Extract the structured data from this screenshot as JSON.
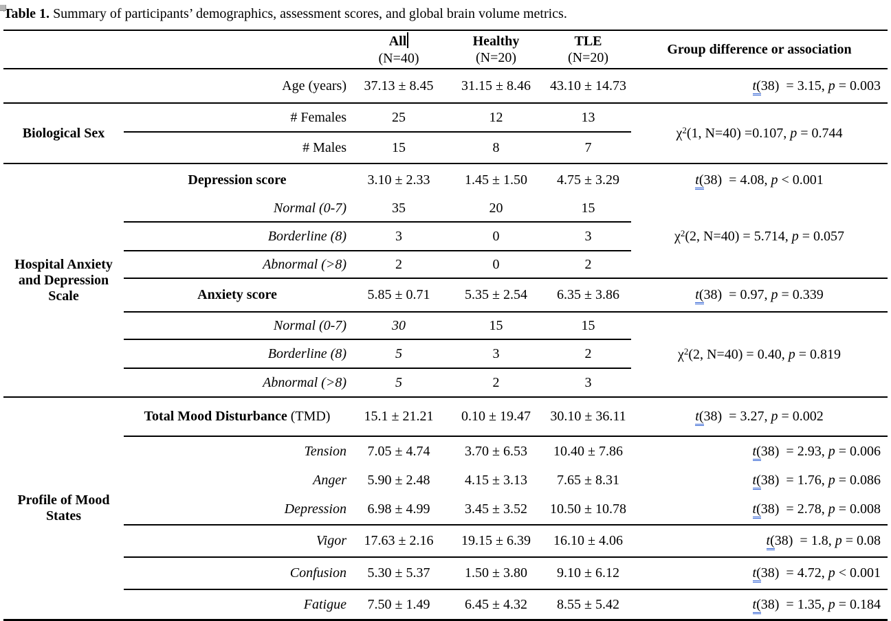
{
  "title": {
    "label": "Table 1.",
    "text": " Summary of participants’ demographics, assessment scores, and global brain volume metrics."
  },
  "header": {
    "columns": [
      {
        "line1": "All",
        "line2": "(N=40)"
      },
      {
        "line1": "Healthy",
        "line2": "(N=20)"
      },
      {
        "line1": "TLE",
        "line2": "(N=20)"
      }
    ],
    "group_diff": "Group difference or association"
  },
  "groups": [
    {
      "label": "Biological Sex"
    },
    {
      "label": "Hospital Anxiety and Depression Scale"
    },
    {
      "label": "Profile of Mood States"
    }
  ],
  "rows": [
    {
      "label": "Age (years)",
      "values": [
        "37.13 ± 8.45",
        "31.15 ± 8.46",
        "43.10 ± 14.73"
      ]
    },
    {
      "label": "# Females",
      "values": [
        "25",
        "12",
        "13"
      ]
    },
    {
      "label": "# Males",
      "values": [
        "15",
        "8",
        "7"
      ]
    },
    {
      "label": "Depression score",
      "values": [
        "3.10 ± 2.33",
        "1.45 ± 1.50",
        "4.75 ± 3.29"
      ]
    },
    {
      "label": "Normal (0-7)",
      "values": [
        "35",
        "20",
        "15"
      ]
    },
    {
      "label": "Borderline (8)",
      "values": [
        "3",
        "0",
        "3"
      ]
    },
    {
      "label": "Abnormal (>8)",
      "values": [
        "2",
        "0",
        "2"
      ]
    },
    {
      "label": "Anxiety score",
      "values": [
        "5.85 ± 0.71",
        "5.35 ± 2.54",
        "6.35 ± 3.86"
      ]
    },
    {
      "label": "Normal (0-7)",
      "values": [
        "30",
        "15",
        "15"
      ]
    },
    {
      "label": "Borderline (8)",
      "values": [
        "5",
        "3",
        "2"
      ]
    },
    {
      "label": "Abnormal (>8)",
      "values": [
        "5",
        "2",
        "3"
      ]
    },
    {
      "label": "Total Mood Disturbance",
      "label_suffix": " (TMD)",
      "values": [
        "15.1 ± 21.21",
        "0.10 ± 19.47",
        "30.10 ± 36.11"
      ]
    },
    {
      "label": "Tension",
      "values": [
        "7.05 ± 4.74",
        "3.70 ± 6.53",
        "10.40 ± 7.86"
      ]
    },
    {
      "label": "Anger",
      "values": [
        "5.90 ± 2.48",
        "4.15 ± 3.13",
        "7.65 ± 8.31"
      ]
    },
    {
      "label": "Depression",
      "values": [
        "6.98 ± 4.99",
        "3.45 ± 3.52",
        "10.50 ± 10.78"
      ]
    },
    {
      "label": "Vigor",
      "values": [
        "17.63 ± 2.16",
        "19.15 ± 6.39",
        "16.10 ± 4.06"
      ]
    },
    {
      "label": "Confusion",
      "values": [
        "5.30 ± 5.37",
        "1.50 ± 3.80",
        "9.10 ± 6.12"
      ]
    },
    {
      "label": "Fatigue",
      "values": [
        "7.50 ± 1.49",
        "6.45 ± 4.32",
        "8.55 ± 5.42"
      ]
    }
  ],
  "stats": [
    {
      "text": "t(38)  = 3.15, p = 0.003",
      "align": "right"
    },
    {
      "text": "χ2(1, N=40) =0.107, p = 0.744",
      "align": "center"
    },
    {
      "text": "t(38)  = 4.08, p < 0.001",
      "align": "center"
    },
    {
      "text": "χ2(2, N=40) = 5.714, p = 0.057",
      "align": "center"
    },
    {
      "text": "t(38)  = 0.97, p = 0.339",
      "align": "center"
    },
    {
      "text": "χ2(2, N=40) = 0.40, p = 0.819",
      "align": "center"
    },
    {
      "text": "t(38)  = 3.27, p = 0.002",
      "align": "center"
    },
    {
      "text": "t(38)  = 2.93, p = 0.006",
      "align": "right"
    },
    {
      "text": "t(38)  = 1.76, p = 0.086",
      "align": "right"
    },
    {
      "text": "t(38)  = 2.78, p = 0.008",
      "align": "right"
    },
    {
      "text": "t(38)  = 1.8, p = 0.08",
      "align": "right"
    },
    {
      "text": "t(38)  = 4.72, p < 0.001",
      "align": "right"
    },
    {
      "text": "t(38)  = 1.35, p = 0.184",
      "align": "right"
    }
  ]
}
